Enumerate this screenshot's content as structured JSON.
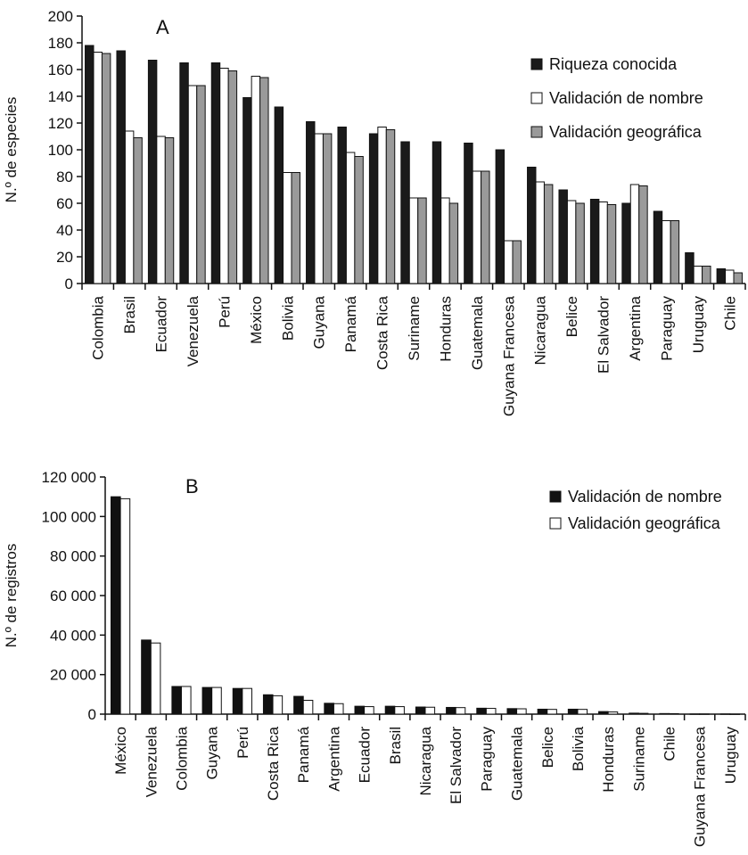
{
  "chart_data": [
    {
      "type": "bar",
      "panel_label": "A",
      "ylabel": "N.º de especies",
      "ylim": [
        0,
        200
      ],
      "yticks": [
        "0",
        "20",
        "40",
        "60",
        "80",
        "100",
        "120",
        "140",
        "160",
        "180",
        "200"
      ],
      "legend_position": "top-right",
      "categories": [
        "Colombia",
        "Brasil",
        "Ecuador",
        "Venezuela",
        "Perú",
        "México",
        "Bolivia",
        "Guyana",
        "Panamá",
        "Costa Rica",
        "Suriname",
        "Honduras",
        "Guatemala",
        "Guyana Francesa",
        "Nicaragua",
        "Belice",
        "El Salvador",
        "Argentina",
        "Paraguay",
        "Uruguay",
        "Chile"
      ],
      "series": [
        {
          "name": "Riqueza conocida",
          "color": "#1a1a1a",
          "values": [
            178,
            174,
            167,
            165,
            165,
            139,
            132,
            121,
            117,
            112,
            106,
            106,
            105,
            100,
            87,
            70,
            63,
            60,
            54,
            23,
            11
          ]
        },
        {
          "name": "Validación de nombre",
          "color": "#ffffff",
          "values": [
            173,
            114,
            110,
            148,
            161,
            155,
            83,
            112,
            98,
            117,
            64,
            64,
            84,
            32,
            76,
            62,
            61,
            74,
            47,
            13,
            10
          ]
        },
        {
          "name": "Validación geográfica",
          "color": "#9a9a9a",
          "values": [
            172,
            109,
            109,
            148,
            159,
            154,
            83,
            112,
            95,
            115,
            64,
            60,
            84,
            32,
            74,
            60,
            59,
            73,
            47,
            13,
            8
          ]
        }
      ]
    },
    {
      "type": "bar",
      "panel_label": "B",
      "ylabel": "N.º de registros",
      "ylim": [
        0,
        120000
      ],
      "yticks": [
        "0",
        "20 000",
        "40 000",
        "60 000",
        "80 000",
        "100 000",
        "120 000"
      ],
      "legend_position": "top-right",
      "categories": [
        "México",
        "Venezuela",
        "Colombia",
        "Guyana",
        "Perú",
        "Costa Rica",
        "Panamá",
        "Argentina",
        "Ecuador",
        "Brasil",
        "Nicaragua",
        "El Salvador",
        "Paraguay",
        "Guatemala",
        "Belice",
        "Bolivia",
        "Honduras",
        "Suriname",
        "Chile",
        "Guyana Francesa",
        "Uruguay"
      ],
      "series": [
        {
          "name": "Validación de nombre",
          "color": "#111111",
          "values": [
            110000,
            37500,
            14000,
            13500,
            13000,
            9800,
            9000,
            5500,
            4000,
            4000,
            3600,
            3400,
            3000,
            2800,
            2500,
            2500,
            1300,
            500,
            300,
            100,
            100
          ]
        },
        {
          "name": "Validación geográfica",
          "color": "#ffffff",
          "values": [
            109000,
            36000,
            14000,
            13500,
            13000,
            9300,
            7000,
            5300,
            3800,
            3800,
            3500,
            3300,
            2900,
            2700,
            2400,
            2400,
            1100,
            400,
            250,
            100,
            50
          ]
        }
      ]
    }
  ]
}
